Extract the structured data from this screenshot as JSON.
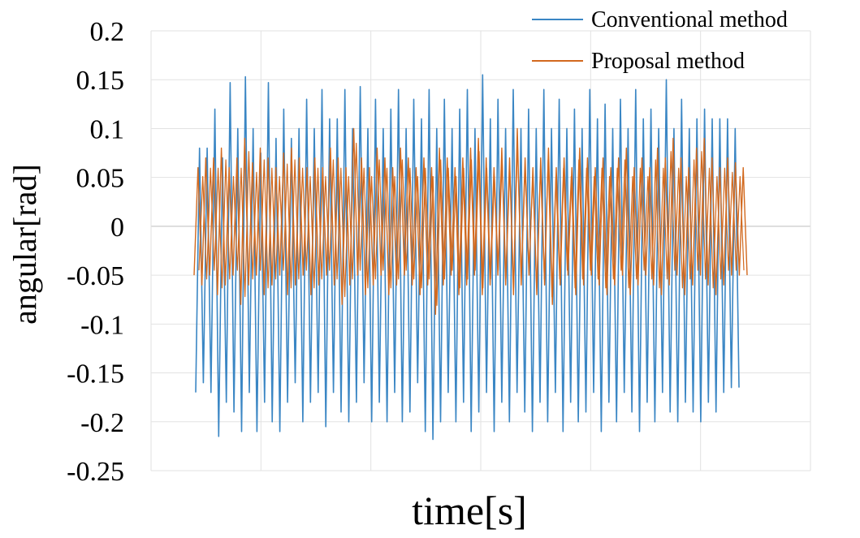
{
  "chart_data": {
    "type": "line",
    "xlabel": "time[s]",
    "ylabel": "angular[rad]",
    "ylim": [
      -0.25,
      0.2
    ],
    "yticks": [
      "0.2",
      "0.15",
      "0.1",
      "0.05",
      "0",
      "-0.05",
      "-0.1",
      "-0.15",
      "-0.2",
      "-0.25"
    ],
    "grid": true,
    "legend_position": "top-right",
    "x_tick_labels_shown": false,
    "series": [
      {
        "name": "Conventional method",
        "color": "#3a86c4",
        "peaks": [
          0.08,
          0.08,
          0.12,
          0.07,
          0.147,
          0.1,
          0.153,
          0.1,
          0.075,
          0.147,
          0.09,
          0.12,
          0.09,
          0.1,
          0.13,
          0.1,
          0.14,
          0.11,
          0.11,
          0.14,
          0.1,
          0.143,
          0.1,
          0.13,
          0.1,
          0.12,
          0.14,
          0.1,
          0.13,
          0.11,
          0.14,
          0.1,
          0.13,
          0.1,
          0.12,
          0.14,
          0.1,
          0.155,
          0.11,
          0.13,
          0.1,
          0.14,
          0.1,
          0.12,
          0.1,
          0.14,
          0.1,
          0.13,
          0.1,
          0.12,
          0.1,
          0.14,
          0.11,
          0.125,
          0.1,
          0.13,
          0.1,
          0.14,
          0.11,
          0.12,
          0.1,
          0.15,
          0.1,
          0.13,
          0.1,
          0.11,
          0.12,
          0.11,
          0.11,
          0.11,
          0.1
        ],
        "troughs": [
          -0.17,
          -0.16,
          -0.17,
          -0.215,
          -0.18,
          -0.19,
          -0.21,
          -0.17,
          -0.21,
          -0.18,
          -0.2,
          -0.21,
          -0.18,
          -0.16,
          -0.2,
          -0.18,
          -0.17,
          -0.205,
          -0.17,
          -0.19,
          -0.2,
          -0.18,
          -0.16,
          -0.2,
          -0.18,
          -0.2,
          -0.17,
          -0.2,
          -0.19,
          -0.16,
          -0.21,
          -0.218,
          -0.2,
          -0.17,
          -0.2,
          -0.18,
          -0.21,
          -0.19,
          -0.17,
          -0.21,
          -0.18,
          -0.2,
          -0.17,
          -0.19,
          -0.21,
          -0.18,
          -0.2,
          -0.17,
          -0.21,
          -0.18,
          -0.2,
          -0.19,
          -0.17,
          -0.21,
          -0.18,
          -0.2,
          -0.17,
          -0.19,
          -0.21,
          -0.18,
          -0.2,
          -0.17,
          -0.19,
          -0.2,
          -0.18,
          -0.19,
          -0.2,
          -0.18,
          -0.19,
          -0.17,
          -0.165
        ]
      },
      {
        "name": "Proposal method",
        "color": "#d2691e",
        "peaks": [
          0.06,
          0.07,
          0.07,
          0.08,
          0.06,
          0.07,
          0.09,
          0.065,
          0.08,
          0.07,
          0.06,
          0.075,
          0.08,
          0.07,
          0.06,
          0.07,
          0.06,
          0.08,
          0.07,
          0.06,
          0.1,
          0.07,
          0.06,
          0.08,
          0.07,
          0.06,
          0.08,
          0.07,
          0.06,
          0.07,
          0.06,
          0.08,
          0.07,
          0.06,
          0.07,
          0.08,
          0.09,
          0.07,
          0.06,
          0.08,
          0.07,
          0.1,
          0.07,
          0.06,
          0.07,
          0.08,
          0.06,
          0.07,
          0.06,
          0.08,
          0.07,
          0.06,
          0.07,
          0.06,
          0.07,
          0.08,
          0.06,
          0.07,
          0.06,
          0.08,
          0.07,
          0.09,
          0.07,
          0.06,
          0.08,
          0.09,
          0.07,
          0.06,
          0.07,
          0.065,
          0.06
        ],
        "troughs": [
          -0.05,
          -0.06,
          -0.05,
          -0.07,
          -0.06,
          -0.05,
          -0.08,
          -0.06,
          -0.05,
          -0.07,
          -0.06,
          -0.05,
          -0.07,
          -0.06,
          -0.05,
          -0.07,
          -0.06,
          -0.05,
          -0.06,
          -0.08,
          -0.06,
          -0.05,
          -0.07,
          -0.06,
          -0.05,
          -0.07,
          -0.06,
          -0.05,
          -0.06,
          -0.07,
          -0.06,
          -0.09,
          -0.06,
          -0.05,
          -0.07,
          -0.06,
          -0.05,
          -0.07,
          -0.06,
          -0.05,
          -0.06,
          -0.07,
          -0.06,
          -0.05,
          -0.07,
          -0.06,
          -0.08,
          -0.06,
          -0.05,
          -0.07,
          -0.06,
          -0.05,
          -0.06,
          -0.07,
          -0.06,
          -0.05,
          -0.07,
          -0.06,
          -0.05,
          -0.06,
          -0.07,
          -0.06,
          -0.05,
          -0.07,
          -0.06,
          -0.05,
          -0.06,
          -0.07,
          -0.06,
          -0.05,
          -0.05
        ]
      }
    ]
  }
}
